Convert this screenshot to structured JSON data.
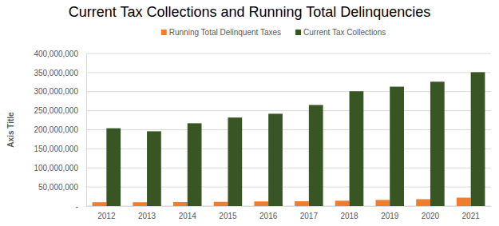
{
  "chart_data": {
    "type": "bar",
    "title": "Current Tax Collections and Running Total Delinquencies",
    "y_label": "Axis Title",
    "categories": [
      "2012",
      "2013",
      "2014",
      "2015",
      "2016",
      "2017",
      "2018",
      "2019",
      "2020",
      "2021"
    ],
    "series": [
      {
        "name": "Running Total Delinquent Taxes",
        "color": "#ed7d31",
        "values": [
          10000000,
          10000000,
          10500000,
          11000000,
          12000000,
          12500000,
          14000000,
          16000000,
          18000000,
          22000000
        ]
      },
      {
        "name": "Current Tax Collections",
        "color": "#375623",
        "values": [
          204000000,
          196000000,
          217000000,
          232000000,
          242000000,
          265000000,
          301000000,
          313000000,
          326000000,
          351000000
        ]
      }
    ],
    "ylim": [
      0,
      400000000
    ],
    "yticks": [
      {
        "value": 0,
        "label": "-"
      },
      {
        "value": 50000000,
        "label": "50,000,000"
      },
      {
        "value": 100000000,
        "label": "100,000,000"
      },
      {
        "value": 150000000,
        "label": "150,000,000"
      },
      {
        "value": 200000000,
        "label": "200,000,000"
      },
      {
        "value": 250000000,
        "label": "250,000,000"
      },
      {
        "value": 300000000,
        "label": "300,000,000"
      },
      {
        "value": 350000000,
        "label": "350,000,000"
      },
      {
        "value": 400000000,
        "label": "400,000,000"
      }
    ],
    "grid": true,
    "legend": "top"
  }
}
